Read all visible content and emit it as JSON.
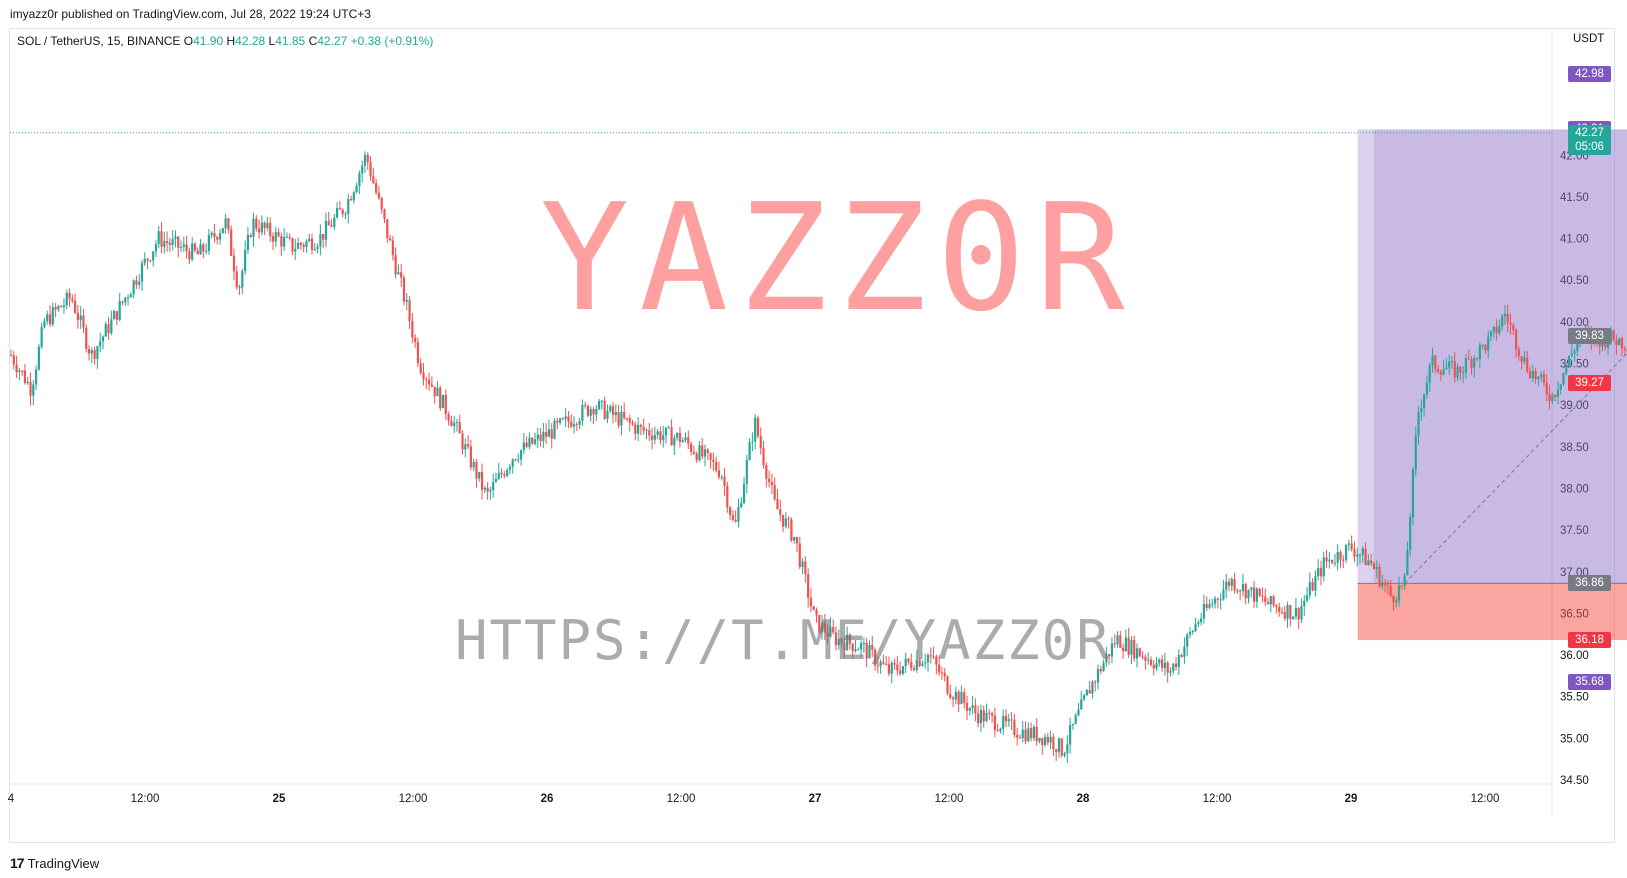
{
  "header": {
    "publisher": "imyazz0r published on TradingView.com, Jul 28, 2022 19:24 UTC+3"
  },
  "legend": {
    "symbol": "SOL / TetherUS, 15, BINANCE",
    "open_label": "O",
    "open": "41.90",
    "high_label": "H",
    "high": "42.28",
    "low_label": "L",
    "low": "41.85",
    "close_label": "C",
    "close": "42.27",
    "change": "+0.38 (+0.91%)"
  },
  "price_axis": {
    "currency": "USDT",
    "labels": [
      {
        "value": 42.98,
        "text": "42.98",
        "color": "#7e57c2"
      },
      {
        "value": 42.31,
        "text": "42.31",
        "color": "#7e57c2"
      },
      {
        "value": 42.27,
        "text": "42.27",
        "sub": "05:06",
        "color": "#26a69a"
      },
      {
        "value": 39.83,
        "text": "39.83",
        "color": "#787b86"
      },
      {
        "value": 39.27,
        "text": "39.27",
        "color": "#f23645"
      },
      {
        "value": 36.86,
        "text": "36.86",
        "color": "#787b86"
      },
      {
        "value": 36.18,
        "text": "36.18",
        "color": "#f23645"
      },
      {
        "value": 35.68,
        "text": "35.68",
        "color": "#7e57c2"
      }
    ]
  },
  "watermarks": {
    "big": "YAZZ0R",
    "url": "HTTPS://T.ME/YAZZ0R"
  },
  "footer": {
    "brand": "TradingView",
    "logo_mark": "17"
  },
  "chart_data": {
    "type": "candlestick",
    "symbol": "SOL / TetherUS",
    "interval": "15",
    "exchange": "BINANCE",
    "ylim": [
      34.5,
      43.0
    ],
    "y_ticks": [
      "34.50",
      "35.00",
      "35.50",
      "36.00",
      "36.50",
      "37.00",
      "37.50",
      "38.00",
      "38.50",
      "39.00",
      "39.50",
      "40.00",
      "40.50",
      "41.00",
      "41.50",
      "42.00"
    ],
    "x_ticks": [
      "4",
      "12:00",
      "25",
      "12:00",
      "26",
      "12:00",
      "27",
      "12:00",
      "28",
      "12:00",
      "29",
      "12:00"
    ],
    "bull_color": "#26a69a",
    "bear_color": "#ef5350",
    "price_path": [
      {
        "t": 0.0,
        "p": 39.6
      },
      {
        "t": 0.15,
        "p": 39.2
      },
      {
        "t": 0.25,
        "p": 40.0
      },
      {
        "t": 0.45,
        "p": 40.3
      },
      {
        "t": 0.6,
        "p": 39.6
      },
      {
        "t": 0.75,
        "p": 40.0
      },
      {
        "t": 1.1,
        "p": 41.0
      },
      {
        "t": 1.4,
        "p": 40.8
      },
      {
        "t": 1.6,
        "p": 41.2
      },
      {
        "t": 1.7,
        "p": 40.4
      },
      {
        "t": 1.8,
        "p": 41.2
      },
      {
        "t": 2.1,
        "p": 40.9
      },
      {
        "t": 2.3,
        "p": 41.0
      },
      {
        "t": 2.5,
        "p": 41.4
      },
      {
        "t": 2.65,
        "p": 42.0
      },
      {
        "t": 2.8,
        "p": 41.1
      },
      {
        "t": 2.95,
        "p": 40.2
      },
      {
        "t": 3.05,
        "p": 39.5
      },
      {
        "t": 3.3,
        "p": 38.8
      },
      {
        "t": 3.55,
        "p": 37.9
      },
      {
        "t": 3.75,
        "p": 38.4
      },
      {
        "t": 4.05,
        "p": 38.7
      },
      {
        "t": 4.35,
        "p": 39.0
      },
      {
        "t": 4.7,
        "p": 38.7
      },
      {
        "t": 5.0,
        "p": 38.6
      },
      {
        "t": 5.3,
        "p": 38.2
      },
      {
        "t": 5.4,
        "p": 37.5
      },
      {
        "t": 5.55,
        "p": 38.8
      },
      {
        "t": 5.7,
        "p": 37.8
      },
      {
        "t": 5.85,
        "p": 37.4
      },
      {
        "t": 6.0,
        "p": 36.4
      },
      {
        "t": 6.15,
        "p": 36.2
      },
      {
        "t": 6.35,
        "p": 36.1
      },
      {
        "t": 6.55,
        "p": 35.8
      },
      {
        "t": 6.85,
        "p": 36.0
      },
      {
        "t": 7.0,
        "p": 35.6
      },
      {
        "t": 7.2,
        "p": 35.3
      },
      {
        "t": 7.5,
        "p": 35.1
      },
      {
        "t": 7.75,
        "p": 35.0
      },
      {
        "t": 7.85,
        "p": 34.85
      },
      {
        "t": 8.05,
        "p": 35.6
      },
      {
        "t": 8.25,
        "p": 36.2
      },
      {
        "t": 8.45,
        "p": 36.0
      },
      {
        "t": 8.65,
        "p": 35.8
      },
      {
        "t": 8.85,
        "p": 36.4
      },
      {
        "t": 9.1,
        "p": 36.9
      },
      {
        "t": 9.4,
        "p": 36.6
      },
      {
        "t": 9.6,
        "p": 36.5
      },
      {
        "t": 9.8,
        "p": 37.1
      },
      {
        "t": 10.0,
        "p": 37.3
      },
      {
        "t": 10.15,
        "p": 37.1
      },
      {
        "t": 10.3,
        "p": 36.7
      },
      {
        "t": 10.4,
        "p": 36.85
      },
      {
        "t": 10.5,
        "p": 38.9
      },
      {
        "t": 10.6,
        "p": 39.5
      },
      {
        "t": 10.8,
        "p": 39.4
      },
      {
        "t": 11.05,
        "p": 39.8
      },
      {
        "t": 11.15,
        "p": 40.1
      },
      {
        "t": 11.3,
        "p": 39.5
      },
      {
        "t": 11.5,
        "p": 39.1
      },
      {
        "t": 11.7,
        "p": 39.8
      },
      {
        "t": 11.95,
        "p": 39.8
      },
      {
        "t": 12.15,
        "p": 39.7
      },
      {
        "t": 12.35,
        "p": 39.35
      },
      {
        "t": 12.55,
        "p": 39.4
      },
      {
        "t": 12.7,
        "p": 39.7
      },
      {
        "t": 12.85,
        "p": 40.1
      },
      {
        "t": 12.95,
        "p": 40.3
      },
      {
        "t": 13.1,
        "p": 39.9
      },
      {
        "t": 13.2,
        "p": 39.6
      },
      {
        "t": 13.3,
        "p": 40.4
      },
      {
        "t": 13.45,
        "p": 41.2
      },
      {
        "t": 13.55,
        "p": 41.7
      },
      {
        "t": 13.65,
        "p": 42.27
      }
    ],
    "annotations": {
      "long_position": {
        "entry": 36.86,
        "target": 42.31,
        "stop": 36.18,
        "t_start": 10.05,
        "t_end": 15.3
      },
      "last_price_line": 42.27
    }
  }
}
